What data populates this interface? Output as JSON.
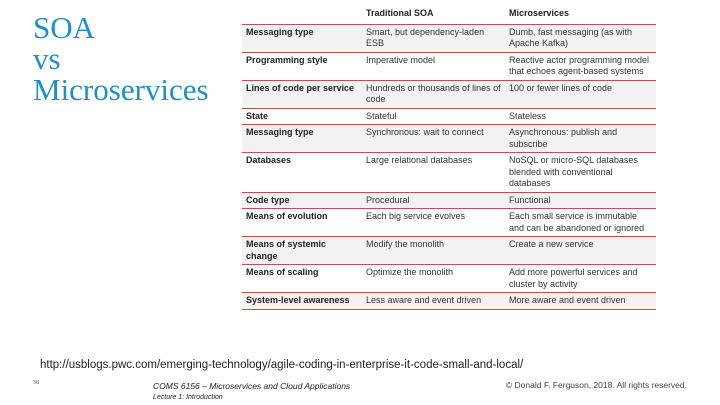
{
  "title_lines": [
    "SOA",
    "vs",
    "Microservices"
  ],
  "table": {
    "headers": [
      "",
      "Traditional SOA",
      "Microservices"
    ],
    "rows": [
      {
        "label": "Messaging type",
        "soa": "Smart, but dependency-laden ESB",
        "micro": "Dumb, fast messaging (as with Apache Kafka)"
      },
      {
        "label": "Programming style",
        "soa": "Imperative model",
        "micro": "Reactive actor programming model that echoes agent-based systems"
      },
      {
        "label": "Lines of code per service",
        "soa": "Hundreds or thousands of lines of code",
        "micro": "100 or fewer lines of code"
      },
      {
        "label": "State",
        "soa": "Stateful",
        "micro": "Stateless"
      },
      {
        "label": "Messaging type",
        "soa": "Synchronous: wait to connect",
        "micro": "Asynchronous: publish and subscribe"
      },
      {
        "label": "Databases",
        "soa": "Large relational databases",
        "micro": "NoSQL or micro-SQL databases blended with conventional databases"
      },
      {
        "label": "Code type",
        "soa": "Procedural",
        "micro": "Functional"
      },
      {
        "label": "Means of evolution",
        "soa": "Each big service evolves",
        "micro": "Each small service is immutable and can be abandoned or ignored"
      },
      {
        "label": "Means of systemic change",
        "soa": "Modify the monolith",
        "micro": "Create a new service"
      },
      {
        "label": "Means of scaling",
        "soa": "Optimize the monolith",
        "micro": "Add more powerful services and cluster by activity"
      },
      {
        "label": "System-level awareness",
        "soa": "Less aware and event driven",
        "micro": "More aware and event driven"
      }
    ]
  },
  "source_url": "http://usblogs.pwc.com/emerging-technology/agile-coding-in-enterprise-it-code-small-and-local/",
  "footer": {
    "slide_number": "38",
    "course_code": "COMS 6156",
    "course_rest": " – Microservices and Cloud Applications",
    "lecture": "Lecture 1: Introduction",
    "copyright": "© Donald F. Ferguson, 2018. All rights reserved."
  },
  "colors": {
    "title": "#1f8fc8",
    "rule": "#c0504d",
    "shade": "#f2f2f2"
  }
}
